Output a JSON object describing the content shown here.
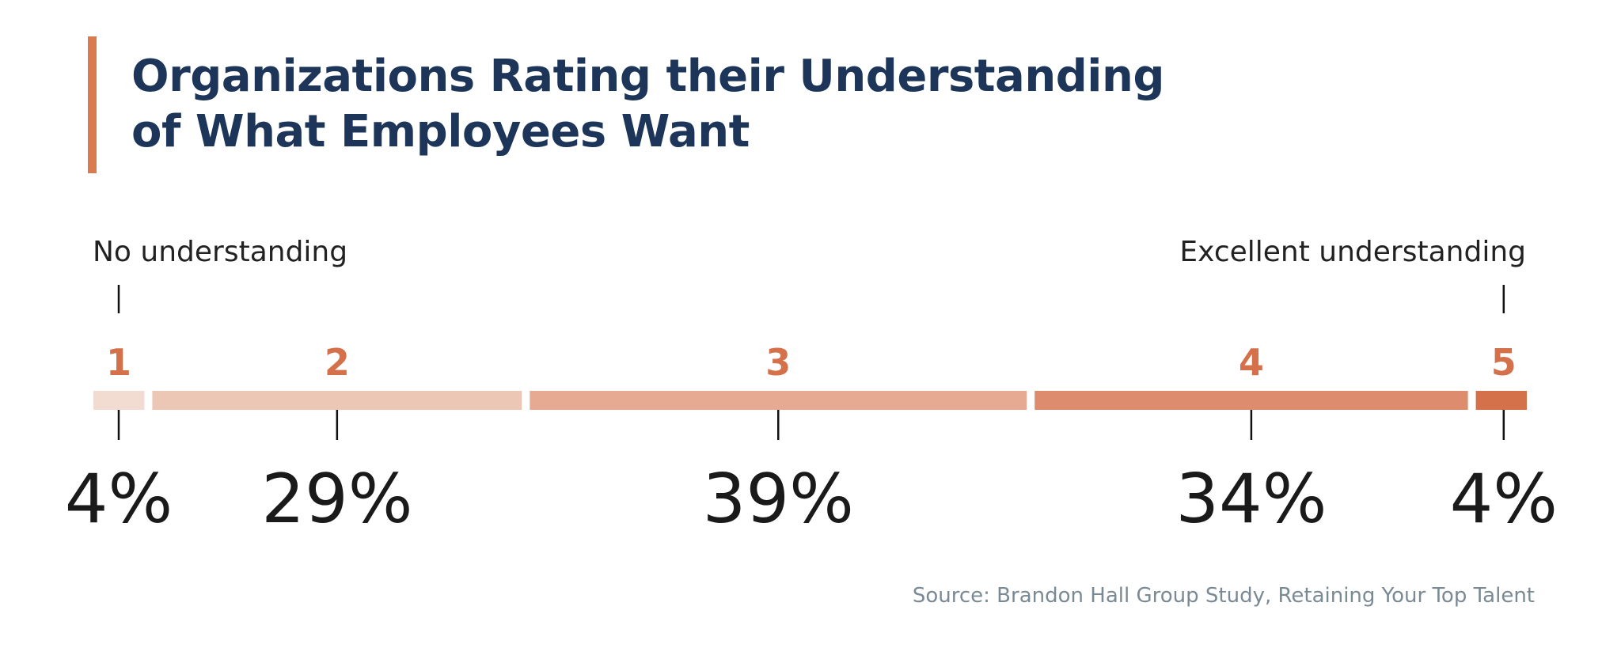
{
  "chart_data": {
    "type": "bar",
    "title": "Organizations Rating their Understanding of What Employees Want",
    "title_lines": [
      "Organizations Rating their Understanding",
      "of What Employees Want"
    ],
    "scale_low_label": "No understanding",
    "scale_high_label": "Excellent understanding",
    "categories": [
      "1",
      "2",
      "3",
      "4",
      "5"
    ],
    "values": [
      4,
      29,
      39,
      34,
      4
    ],
    "value_labels": [
      "4%",
      "29%",
      "39%",
      "34%",
      "4%"
    ],
    "colors": [
      "#f2dbd0",
      "#edc7b6",
      "#e6aa93",
      "#dd8d6d",
      "#d4714a"
    ],
    "category_label_color": "#d4714a",
    "accent_color": "#d97a4f",
    "title_color": "#1c3559",
    "source": "Source: Brandon Hall Group Study, Retaining Your Top Talent"
  }
}
